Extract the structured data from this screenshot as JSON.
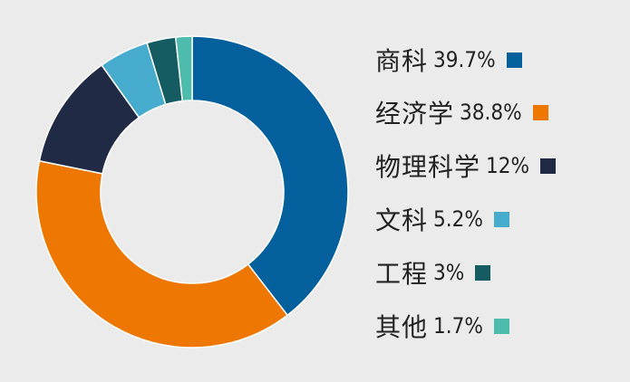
{
  "chart_data": {
    "type": "pie",
    "subtype": "donut",
    "title": "",
    "legend_position": "right",
    "categories": [
      "商科",
      "经济学",
      "物理科学",
      "文科",
      "工程",
      "其他"
    ],
    "values": [
      39.7,
      38.8,
      12,
      5.2,
      3,
      1.7
    ],
    "value_labels": [
      "39.7%",
      "38.8%",
      "12%",
      "5.2%",
      "3%",
      "1.7%"
    ],
    "colors": [
      "#03609c",
      "#ed7700",
      "#212a44",
      "#46abcc",
      "#155c62",
      "#4ebcad"
    ]
  }
}
